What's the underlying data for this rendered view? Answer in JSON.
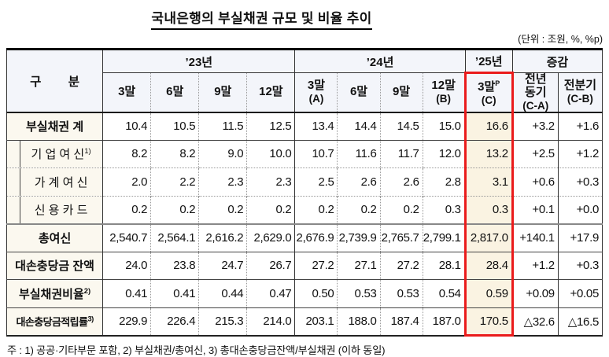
{
  "document": {
    "title": "국내은행의 부실채권 규모 및 비율 추이",
    "unit_note": "(단위 : 조원, %, %p)",
    "footnote": "주 : 1) 공공·기타부문 포함,  2) 부실채권/총여신,  3) 총대손충당금잔액/부실채권 (이하 동일)"
  },
  "table": {
    "corner_label": "구        분",
    "year_groups": [
      {
        "label": "’23년",
        "span": 4
      },
      {
        "label": "’24년",
        "span": 4
      },
      {
        "label": "’25년",
        "span": 1
      },
      {
        "label": "증감",
        "span": 2
      }
    ],
    "columns": [
      {
        "t": "3말"
      },
      {
        "t": "6말"
      },
      {
        "t": "9말"
      },
      {
        "t": "12말"
      },
      {
        "t": "3말",
        "b": "(A)"
      },
      {
        "t": "6말"
      },
      {
        "t": "9말"
      },
      {
        "t": "12말",
        "b": "(B)"
      },
      {
        "t": "3말",
        "p": "P",
        "b": "(C)"
      },
      {
        "t": "전년",
        "m": "동기",
        "b": "(C-A)"
      },
      {
        "t": "전분기",
        "b": "(C-B)"
      }
    ],
    "rows": [
      {
        "label": "부실채권 계",
        "bold": true,
        "values": [
          "10.4",
          "10.5",
          "11.5",
          "12.5",
          "13.4",
          "14.4",
          "14.5",
          "15.0",
          "16.6",
          "+3.2",
          "+1.6"
        ]
      },
      {
        "label": "기 업 여 신",
        "sup": "1)",
        "indent": true,
        "values": [
          "8.2",
          "8.2",
          "9.0",
          "10.0",
          "10.7",
          "11.6",
          "11.7",
          "12.0",
          "13.2",
          "+2.5",
          "+1.2"
        ]
      },
      {
        "label": "가 계 여 신",
        "indent": true,
        "values": [
          "2.0",
          "2.2",
          "2.3",
          "2.3",
          "2.5",
          "2.6",
          "2.6",
          "2.8",
          "3.1",
          "+0.6",
          "+0.3"
        ]
      },
      {
        "label": "신 용 카 드",
        "indent": true,
        "values": [
          "0.2",
          "0.2",
          "0.2",
          "0.2",
          "0.2",
          "0.2",
          "0.2",
          "0.3",
          "0.3",
          "+0.1",
          "+0.0"
        ]
      },
      {
        "label": "총여신",
        "bold": true,
        "values": [
          "2,540.7",
          "2,564.1",
          "2,616.2",
          "2,629.0",
          "2,676.9",
          "2,739.9",
          "2,765.7",
          "2,799.1",
          "2,817.0",
          "+140.1",
          "+17.9"
        ]
      },
      {
        "label": "대손충당금 잔액",
        "bold": true,
        "values": [
          "24.0",
          "23.8",
          "24.7",
          "26.7",
          "27.2",
          "27.1",
          "27.2",
          "28.1",
          "28.4",
          "+1.2",
          "+0.3"
        ]
      },
      {
        "label": "부실채권비율",
        "sup": "2)",
        "bold": true,
        "values": [
          "0.41",
          "0.41",
          "0.44",
          "0.47",
          "0.50",
          "0.53",
          "0.53",
          "0.54",
          "0.59",
          "+0.09",
          "+0.05"
        ]
      },
      {
        "label": "대손충당금적립률",
        "sup": "3)",
        "bold": true,
        "narrow": true,
        "values": [
          "229.9",
          "226.4",
          "215.3",
          "214.0",
          "203.1",
          "188.0",
          "187.4",
          "187.0",
          "170.5",
          "△32.6",
          "△16.5"
        ]
      }
    ]
  },
  "colors": {
    "accent_red": "#EA1B1B",
    "highlight_bg": "#FAF3E2",
    "header_bg": "#F3F5FA",
    "label_bg": "#FBF8EF"
  }
}
